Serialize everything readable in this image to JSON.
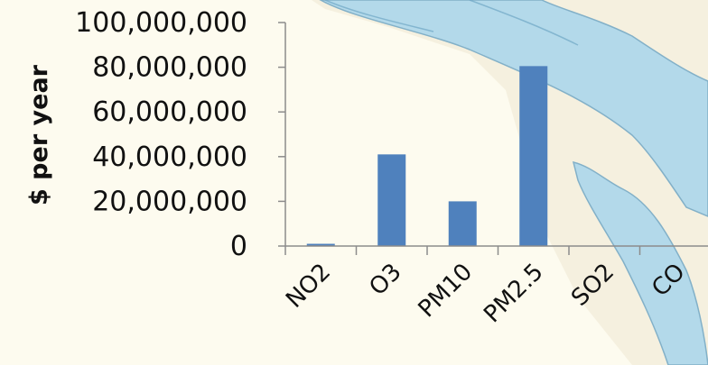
{
  "chart_data": {
    "type": "bar",
    "title": "",
    "xlabel": "",
    "ylabel": "$ per year",
    "categories": [
      "NO2",
      "O3",
      "PM10",
      "PM2.5",
      "SO2",
      "CO"
    ],
    "values": [
      1000000,
      41000000,
      20000000,
      80500000,
      0,
      0
    ],
    "ylim": [
      0,
      100000000
    ],
    "yticks": [
      0,
      20000000,
      40000000,
      60000000,
      80000000,
      100000000
    ],
    "ytick_labels": [
      "0",
      "20,000,000",
      "40,000,000",
      "60,000,000",
      "80,000,000",
      "100,000,000"
    ],
    "grid": false,
    "legend": "none",
    "bar_color": "#4f81bd",
    "axis_color": "#8c8c8c"
  },
  "colors": {
    "background": "#fdfbef",
    "map_land": "#f4eedd",
    "map_water": "#a8d5ec",
    "map_coast": "#6fa6c4"
  }
}
